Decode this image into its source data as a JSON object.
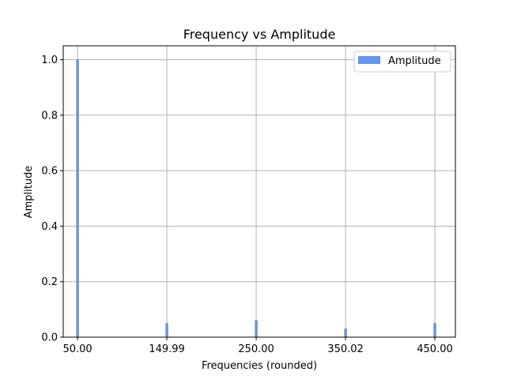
{
  "chart_data": {
    "type": "bar",
    "title": "Frequency vs Amplitude",
    "xlabel": "Frequencies (rounded)",
    "ylabel": "Amplitude",
    "categories": [
      "50.00",
      "149.99",
      "250.00",
      "350.02",
      "450.00"
    ],
    "x_values": [
      50.0,
      149.99,
      250.0,
      350.02,
      450.0
    ],
    "values": [
      1.0,
      0.05,
      0.06,
      0.03,
      0.05
    ],
    "xlim": [
      34.0,
      473.0
    ],
    "ylim": [
      0.0,
      1.05
    ],
    "yticks": [
      "0.0",
      "0.2",
      "0.4",
      "0.6",
      "0.8",
      "1.0"
    ],
    "ytick_values": [
      0.0,
      0.2,
      0.4,
      0.6,
      0.8,
      1.0
    ],
    "grid": true,
    "legend": {
      "position": "top-right",
      "entries": [
        "Amplitude"
      ]
    },
    "series_color": "#6495ed",
    "bar_edge_color": "#808080",
    "grid_color": "#b0b0b0"
  }
}
